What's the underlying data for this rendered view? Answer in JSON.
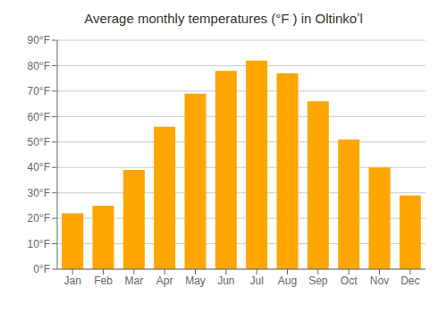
{
  "chart_data": {
    "type": "bar",
    "title": "Average monthly temperatures (°F ) in Oltinkoʼl",
    "categories": [
      "Jan",
      "Feb",
      "Mar",
      "Apr",
      "May",
      "Jun",
      "Jul",
      "Aug",
      "Sep",
      "Oct",
      "Nov",
      "Dec"
    ],
    "values": [
      22,
      25,
      39,
      56,
      69,
      78,
      82,
      77,
      66,
      51,
      40,
      29
    ],
    "color": "#FFA500",
    "ylim": [
      0,
      90
    ],
    "yticks": [
      {
        "value": 0,
        "label": "0°F"
      },
      {
        "value": 10,
        "label": "10°F"
      },
      {
        "value": 20,
        "label": "20°F"
      },
      {
        "value": 30,
        "label": "30°F"
      },
      {
        "value": 40,
        "label": "40°F"
      },
      {
        "value": 50,
        "label": "50°F"
      },
      {
        "value": 60,
        "label": "60°F"
      },
      {
        "value": 70,
        "label": "70°F"
      },
      {
        "value": 80,
        "label": "80°F"
      },
      {
        "value": 90,
        "label": "90°F"
      }
    ],
    "grid": true
  }
}
